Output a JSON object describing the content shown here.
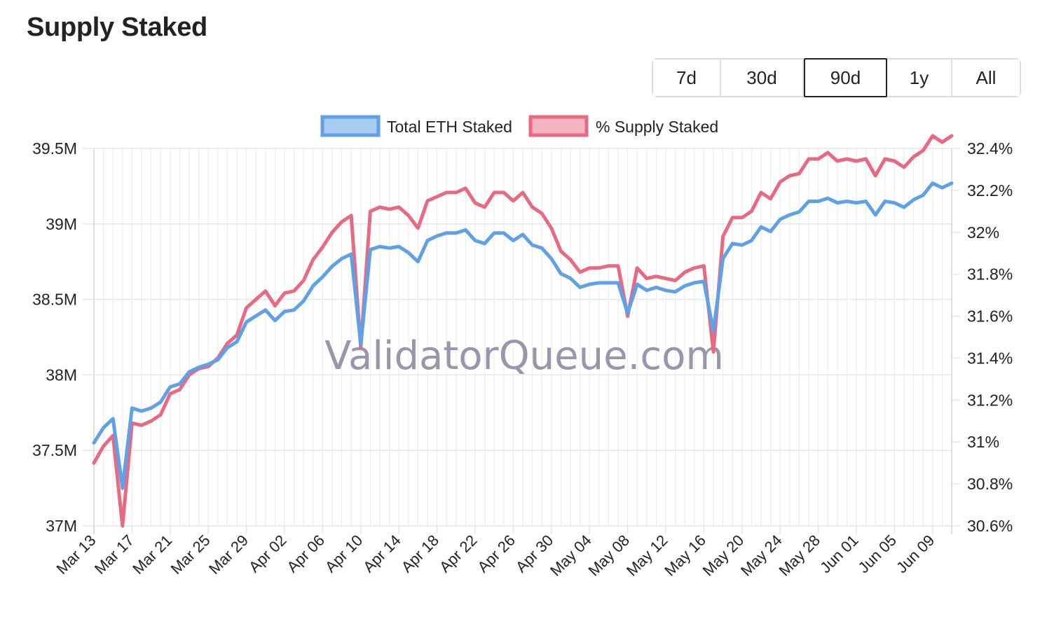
{
  "page": {
    "title": "Supply Staked"
  },
  "range_selector": {
    "active": "90d",
    "options": [
      {
        "id": "7d",
        "label": "7d"
      },
      {
        "id": "30d",
        "label": "30d"
      },
      {
        "id": "90d",
        "label": "90d"
      },
      {
        "id": "1y",
        "label": "1y"
      },
      {
        "id": "all",
        "label": "All"
      }
    ]
  },
  "watermark": "ValidatorQueue.com",
  "colors": {
    "eth_line": "#5fa0e6",
    "eth_fill": "#a9cdf2",
    "pct_line": "#e76a82",
    "pct_fill": "#f4b3c0",
    "grid": "#e6e6e6",
    "axis_text": "#222222",
    "watermark": "#8e8aa2"
  },
  "chart_data": {
    "type": "line",
    "title": "",
    "xlabel": "",
    "ylabel": "",
    "legend": "top-center",
    "grid": true,
    "x_ticks": [
      "Mar 13",
      "Mar 17",
      "Mar 21",
      "Mar 25",
      "Mar 29",
      "Apr 02",
      "Apr 06",
      "Apr 10",
      "Apr 14",
      "Apr 18",
      "Apr 22",
      "Apr 26",
      "Apr 30",
      "May 04",
      "May 08",
      "May 12",
      "May 16",
      "May 20",
      "May 24",
      "May 28",
      "Jun 01",
      "Jun 05",
      "Jun 09"
    ],
    "start_date": "Mar 13",
    "y_left": {
      "ticks": [
        "37M",
        "37.5M",
        "38M",
        "38.5M",
        "39M",
        "39.5M"
      ],
      "range": [
        37000000,
        39500000
      ]
    },
    "y_right": {
      "ticks": [
        "30.6%",
        "30.8%",
        "31%",
        "31.2%",
        "31.4%",
        "31.6%",
        "31.8%",
        "32%",
        "32.2%",
        "32.4%"
      ],
      "range": [
        30.6,
        32.4
      ]
    },
    "series": [
      {
        "name": "Total ETH Staked",
        "axis": "left",
        "values": [
          37550000,
          37650000,
          37710000,
          37250000,
          37780000,
          37760000,
          37780000,
          37820000,
          37920000,
          37940000,
          38020000,
          38050000,
          38070000,
          38100000,
          38180000,
          38220000,
          38350000,
          38390000,
          38430000,
          38360000,
          38420000,
          38430000,
          38490000,
          38590000,
          38650000,
          38720000,
          38770000,
          38800000,
          38200000,
          38830000,
          38850000,
          38840000,
          38850000,
          38810000,
          38750000,
          38890000,
          38920000,
          38940000,
          38940000,
          38960000,
          38890000,
          38870000,
          38940000,
          38940000,
          38890000,
          38930000,
          38860000,
          38840000,
          38770000,
          38670000,
          38640000,
          38580000,
          38600000,
          38610000,
          38610000,
          38610000,
          38410000,
          38600000,
          38560000,
          38580000,
          38560000,
          38550000,
          38590000,
          38610000,
          38620000,
          38290000,
          38770000,
          38870000,
          38860000,
          38890000,
          38980000,
          38950000,
          39030000,
          39060000,
          39080000,
          39150000,
          39150000,
          39170000,
          39140000,
          39150000,
          39140000,
          39150000,
          39060000,
          39150000,
          39140000,
          39110000,
          39160000,
          39190000,
          39270000,
          39240000,
          39270000
        ],
        "start": "Mar 13"
      },
      {
        "name": "% Supply Staked",
        "axis": "right",
        "values": [
          30.9,
          30.98,
          31.03,
          30.6,
          31.09,
          31.08,
          31.1,
          31.13,
          31.23,
          31.25,
          31.32,
          31.35,
          31.36,
          31.4,
          31.47,
          31.51,
          31.64,
          31.68,
          31.72,
          31.65,
          31.71,
          31.72,
          31.77,
          31.87,
          31.93,
          32,
          32.05,
          32.08,
          31.45,
          32.1,
          32.12,
          32.11,
          32.12,
          32.08,
          32.02,
          32.15,
          32.17,
          32.19,
          32.19,
          32.21,
          32.14,
          32.12,
          32.19,
          32.19,
          32.15,
          32.19,
          32.12,
          32.09,
          32.02,
          31.91,
          31.87,
          31.81,
          31.83,
          31.83,
          31.84,
          31.84,
          31.6,
          31.83,
          31.78,
          31.79,
          31.78,
          31.77,
          31.81,
          31.83,
          31.84,
          31.43,
          31.98,
          32.07,
          32.07,
          32.1,
          32.19,
          32.16,
          32.24,
          32.27,
          32.28,
          32.35,
          32.35,
          32.38,
          32.34,
          32.35,
          32.34,
          32.35,
          32.27,
          32.35,
          32.34,
          32.31,
          32.36,
          32.39,
          32.46,
          32.43,
          32.46
        ],
        "start": "Mar 13"
      }
    ]
  }
}
